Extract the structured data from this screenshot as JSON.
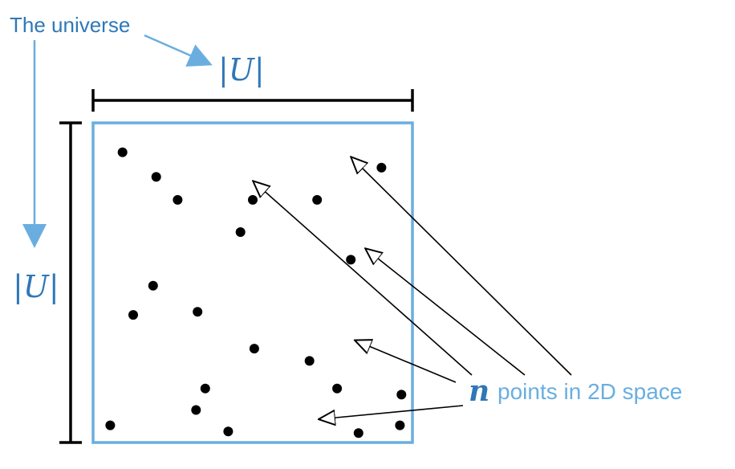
{
  "colors": {
    "universe_border": "#6aaee0",
    "universe_text": "#2f78b8",
    "points_text": "#6aaee0",
    "dimension_bar": "#000000",
    "point_fill": "#000000",
    "arrow": "#000000"
  },
  "labels": {
    "universe_caption": "The universe",
    "width_math": "|U|",
    "height_math": "|U|",
    "points_var": "n",
    "points_caption": "points in 2D space"
  },
  "points": [
    {
      "x": 0.075,
      "y": 0.925
    },
    {
      "x": 0.185,
      "y": 0.845
    },
    {
      "x": 0.255,
      "y": 0.77
    },
    {
      "x": 0.71,
      "y": 0.77
    },
    {
      "x": 0.92,
      "y": 0.875
    },
    {
      "x": 0.5,
      "y": 0.77
    },
    {
      "x": 0.46,
      "y": 0.665
    },
    {
      "x": 0.175,
      "y": 0.49
    },
    {
      "x": 0.11,
      "y": 0.395
    },
    {
      "x": 0.82,
      "y": 0.575
    },
    {
      "x": 0.32,
      "y": 0.405
    },
    {
      "x": 0.505,
      "y": 0.285
    },
    {
      "x": 0.685,
      "y": 0.245
    },
    {
      "x": 0.345,
      "y": 0.155
    },
    {
      "x": 0.775,
      "y": 0.155
    },
    {
      "x": 0.42,
      "y": 0.015
    },
    {
      "x": 0.035,
      "y": 0.035
    },
    {
      "x": 0.315,
      "y": 0.085
    },
    {
      "x": 0.98,
      "y": 0.035
    },
    {
      "x": 0.985,
      "y": 0.135
    },
    {
      "x": 0.845,
      "y": 0.01
    }
  ]
}
